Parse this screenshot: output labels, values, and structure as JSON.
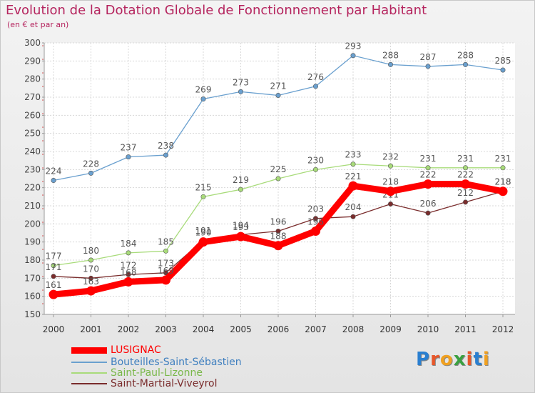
{
  "title": "Evolution de la Dotation Globale de Fonctionnement par Habitant",
  "subtitle": "(en € et par an)",
  "logo": {
    "text": "Proxiti",
    "letters": [
      "P",
      "r",
      "o",
      "x",
      "i",
      "t",
      "i"
    ],
    "colors": [
      "#2a7fd0",
      "#e8572a",
      "#f0a020",
      "#3aa040",
      "#e8572a",
      "#2a7fd0",
      "#f0a020"
    ]
  },
  "chart_data": {
    "type": "line",
    "categories": [
      "2000",
      "2001",
      "2002",
      "2003",
      "2004",
      "2005",
      "2006",
      "2007",
      "2008",
      "2009",
      "2010",
      "2011",
      "2012"
    ],
    "ylim": [
      150,
      300
    ],
    "yticks": [
      "150",
      "160",
      "170",
      "180",
      "190",
      "200",
      "210",
      "220",
      "230",
      "240",
      "250",
      "260",
      "270",
      "280",
      "290",
      "300"
    ],
    "grid": true,
    "series": [
      {
        "name": "Bouteilles-Saint-Sébastien",
        "color": "#6aa0cf",
        "values": [
          224,
          228,
          237,
          238,
          269,
          273,
          271,
          276,
          293,
          288,
          287,
          288,
          285
        ],
        "labels": [
          "224",
          "228",
          "237",
          "238",
          "269",
          "273",
          "271",
          "276",
          "293",
          "288",
          "287",
          "288",
          "285"
        ]
      },
      {
        "name": "Saint-Paul-Lizonne",
        "color": "#a8db7a",
        "values": [
          177,
          180,
          184,
          185,
          215,
          219,
          225,
          230,
          233,
          232,
          231,
          231,
          231
        ],
        "labels": [
          "177",
          "180",
          "184",
          "185",
          "215",
          "219",
          "225",
          "230",
          "233",
          "232",
          "231",
          "231",
          "231"
        ]
      },
      {
        "name": "Saint-Martial-Viveyrol",
        "color": "#7a2c2c",
        "values": [
          171,
          170,
          172,
          173,
          191,
          194,
          196,
          203,
          204,
          211,
          206,
          212,
          218
        ],
        "labels": [
          "171",
          "170",
          "172",
          "173",
          "191",
          "194",
          "196",
          "203",
          "204",
          "211",
          "206",
          "212",
          "218"
        ]
      },
      {
        "name": "LUSIGNAC",
        "color": "#ff0000",
        "values": [
          161,
          163,
          168,
          169,
          190,
          193,
          188,
          196,
          221,
          218,
          222,
          222,
          218
        ],
        "labels": [
          "161",
          "163",
          "168",
          "169",
          "190",
          "193",
          "188",
          "196",
          "221",
          "218",
          "222",
          "222",
          "218"
        ]
      }
    ],
    "legend": [
      "LUSIGNAC",
      "Bouteilles-Saint-Sébastien",
      "Saint-Paul-Lizonne",
      "Saint-Martial-Viveyrol"
    ]
  }
}
